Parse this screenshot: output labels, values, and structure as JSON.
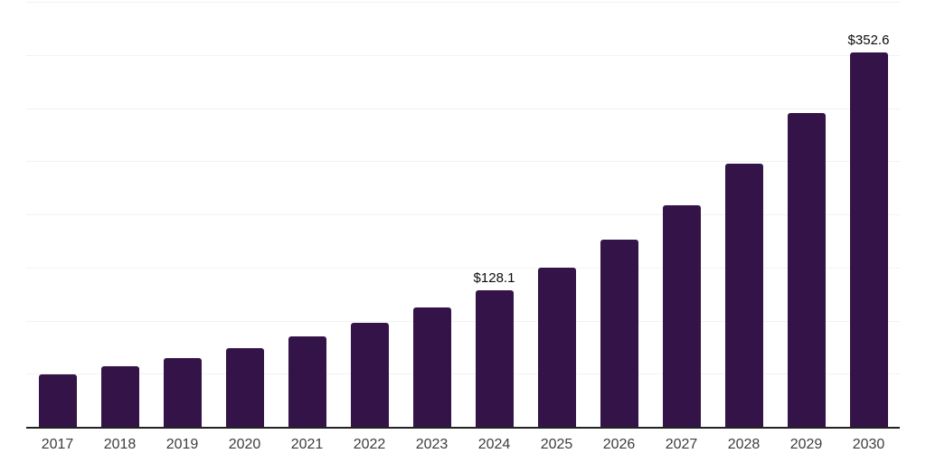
{
  "chart_data": {
    "type": "bar",
    "title": "",
    "xlabel": "",
    "ylabel": "",
    "categories": [
      "2017",
      "2018",
      "2019",
      "2020",
      "2021",
      "2022",
      "2023",
      "2024",
      "2025",
      "2026",
      "2027",
      "2028",
      "2029",
      "2030"
    ],
    "values": [
      49.8,
      56.9,
      65.0,
      73.9,
      85.0,
      98.0,
      112.2,
      128.1,
      150.2,
      176.6,
      208.7,
      247.5,
      295.7,
      352.6
    ],
    "data_labels": {
      "2024": "$128.1",
      "2030": "$352.6"
    },
    "ylim": [
      0,
      400
    ],
    "gridline_step": 50,
    "y_tick_labels_visible": false,
    "grid": "horizontal",
    "legend": "none",
    "colors": {
      "bar": "#341348",
      "gridline": "#f2f2f2",
      "axis_line": "#222222",
      "x_label_text": "#3d3d3d",
      "value_label_text": "#0a0a0a",
      "background": "#ffffff"
    }
  }
}
